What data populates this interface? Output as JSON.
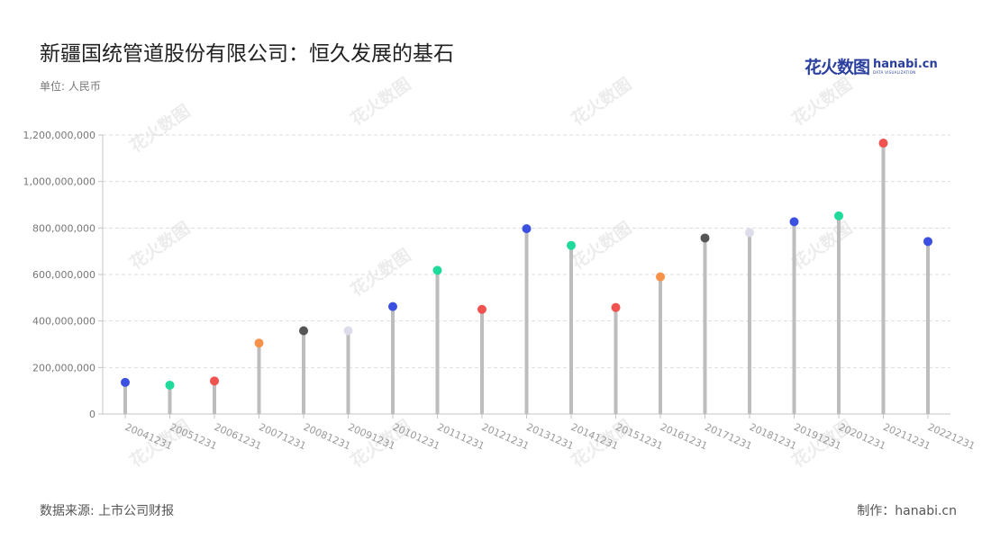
{
  "title": "新疆国统管道股份有限公司：恒久发展的基石",
  "unit_label": "单位: 人民币",
  "source_label": "数据来源: 上市公司财报",
  "credit_label": "制作：hanabi.cn",
  "logo": {
    "cn": "花火数图",
    "en": "hanabi.cn",
    "sub": "DATA VISUALIZATION"
  },
  "watermark_text": "花火数图",
  "colors": {
    "stem": "#bdbdbd",
    "grid": "#dddddd",
    "palette": [
      "#3b4fe0",
      "#1edb9b",
      "#f0524f",
      "#f7924a",
      "#555555",
      "#dcdcea"
    ]
  },
  "chart_data": {
    "type": "lollipop",
    "title": "新疆国统管道股份有限公司：恒久发展的基石",
    "unit": "单位: 人民币",
    "categories": [
      "20041231",
      "20051231",
      "20061231",
      "20071231",
      "20081231",
      "20091231",
      "20101231",
      "20111231",
      "20121231",
      "20131231",
      "20141231",
      "20151231",
      "20161231",
      "20171231",
      "20181231",
      "20191231",
      "20201231",
      "20211231",
      "20221231"
    ],
    "values": [
      136000000,
      124000000,
      142000000,
      305000000,
      358000000,
      358000000,
      462000000,
      618000000,
      450000000,
      797000000,
      725000000,
      458000000,
      590000000,
      757000000,
      780000000,
      827000000,
      852000000,
      1165000000,
      742000000
    ],
    "point_colors": [
      "#3b4fe0",
      "#1edb9b",
      "#f0524f",
      "#f7924a",
      "#555555",
      "#dcdcea",
      "#3b4fe0",
      "#1edb9b",
      "#f0524f",
      "#3b4fe0",
      "#1edb9b",
      "#f0524f",
      "#f7924a",
      "#555555",
      "#dcdcea",
      "#3b4fe0",
      "#1edb9b",
      "#f0524f",
      "#3b4fe0"
    ],
    "ylim": [
      0,
      1200000000
    ],
    "yticks": [
      "0",
      "200,000,000",
      "400,000,000",
      "600,000,000",
      "800,000,000",
      "1,000,000,000",
      "1,200,000,000"
    ],
    "grid": true
  }
}
